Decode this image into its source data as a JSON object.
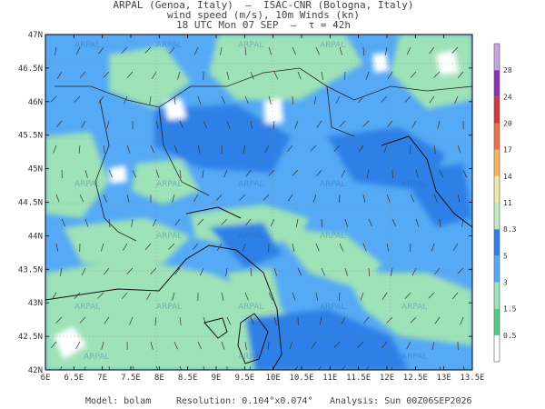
{
  "header": {
    "line1": "ARPAL (Genoa, Italy)  –  ISAC-CNR (Bologna, Italy)",
    "line2": "wind speed (m/s), 10m Winds (kn)",
    "line3": "18 UTC Mon 07 SEP  –  τ = 42h"
  },
  "axes": {
    "lat_labels": [
      "47N",
      "46.5N",
      "46N",
      "45.5N",
      "45N",
      "44.5N",
      "44N",
      "43.5N",
      "43N",
      "42.5N",
      "42N"
    ],
    "lon_labels": [
      "6E",
      "6.5E",
      "7E",
      "7.5E",
      "8E",
      "8.5E",
      "9E",
      "9.5E",
      "10E",
      "10.5E",
      "11E",
      "11.5E",
      "12E",
      "12.5E",
      "13E",
      "13.5E"
    ]
  },
  "colorbar": {
    "ticks": [
      "0.5",
      "1.5",
      "3",
      "5",
      "8.3",
      "11",
      "14",
      "17",
      "20",
      "24",
      "28"
    ],
    "colors": [
      "#ffffff",
      "#55c985",
      "#9ee2b7",
      "#56a9f5",
      "#2e80e6",
      "#bdecc4",
      "#f0e6a8",
      "#f2b55a",
      "#e8724a",
      "#c83c3c",
      "#8a32b3",
      "#c7a3e6"
    ]
  },
  "watermark": "ARPAL",
  "footer": {
    "model": "Model: bolam",
    "resolution": "Resolution: 0.104°x0.074°",
    "analysis": "Analysis: Sun 00Z06SEP2026"
  },
  "colors": {
    "calm": "#9ee2b7",
    "moderate": "#56a9f5",
    "fresh": "#2e80e6"
  }
}
